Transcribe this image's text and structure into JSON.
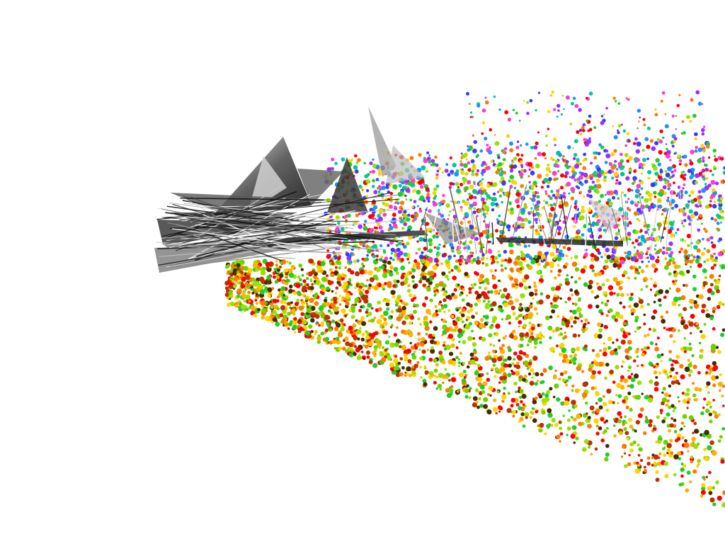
{
  "viewer": {
    "background": "#ffffff",
    "render_mode": "point-cloud-with-camera-frustums"
  },
  "point_cloud": {
    "color_scheme": "normal-map-rainbow",
    "palette": [
      "#ff0000",
      "#ff7a00",
      "#ffd200",
      "#9be000",
      "#1ecf2a",
      "#00c8a0",
      "#1e90ff",
      "#3a3aff",
      "#9b30ff",
      "#ff3ad2"
    ]
  },
  "camera_frustums": {
    "style": "grayscale-textured-triangles",
    "colors": [
      "#111111",
      "#4a4a4a",
      "#8c8c8c",
      "#c8c8c8",
      "#ffffff"
    ]
  }
}
